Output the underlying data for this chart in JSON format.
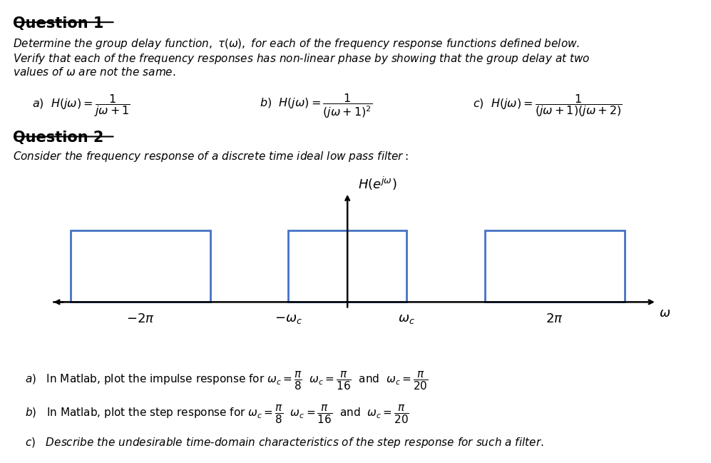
{
  "background": "#ffffff",
  "text_color": "#000000",
  "box_color": "#4472c4"
}
